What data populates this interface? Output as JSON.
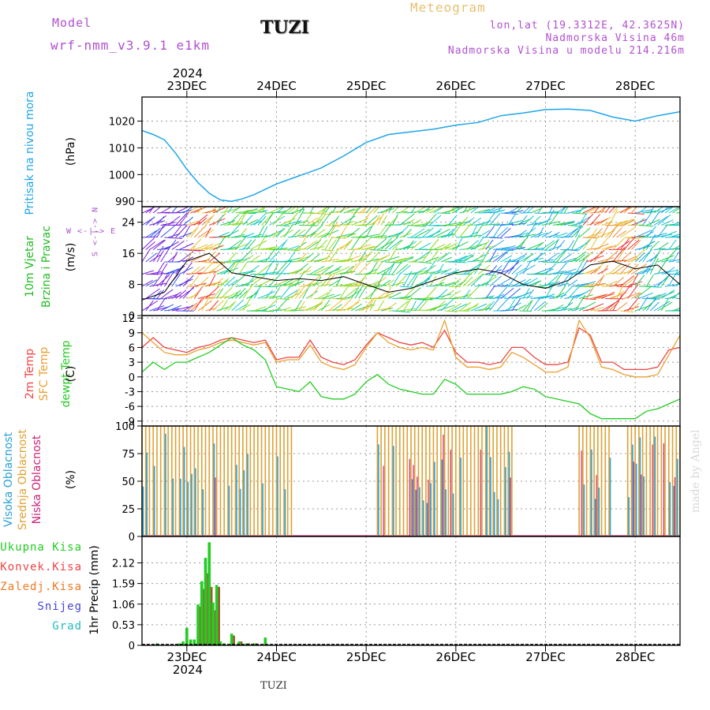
{
  "header": {
    "model_label": "Model",
    "model_name": "wrf-nmm_v3.9.1 e1km",
    "station": "TUZI",
    "product": "Meteogram",
    "lonlat": "lon,lat (19.3312E, 42.3625N)",
    "altitude": "Nadmorska Visina 46m",
    "model_altitude": "Nadmorska Visina u modelu 214.216m"
  },
  "footer": {
    "station": "TUZI",
    "credit": "made by Angel"
  },
  "colors": {
    "pressure": "#1ea6e8",
    "rain_total": "#22cc22",
    "rain_conv": "#ee4444",
    "freezing": "#ee7722",
    "snow": "#4444dd",
    "graupel": "#22bbbb",
    "t2m": "#ee4444",
    "tsfc": "#e8a030",
    "dewpt": "#22cc22",
    "cloud_high": "#2a9fd6",
    "cloud_mid": "#e0a030",
    "cloud_low": "#cc2277",
    "wind_label": "#22bb22",
    "wind_axis": "#aa55cc"
  },
  "axis": {
    "top_year": "2024",
    "bottom_year": "2024",
    "days": [
      "23DEC",
      "24DEC",
      "25DEC",
      "26DEC",
      "27DEC",
      "28DEC"
    ]
  },
  "labels": {
    "pressure": "Pritisak na nivou mora",
    "pressure_unit": "(hPa)",
    "wind1": "10m Vjetar",
    "wind2": "Brzina i Pravac",
    "wind_unit": "(m/s)",
    "wind_compass_ns": "S <-|-> N",
    "wind_compass_ew": "W <-|-> E",
    "t2m": "2m Temp",
    "tsfc": "SFC Temp",
    "dewpt": "dewpt Temp",
    "temp_unit": "(C)",
    "cloud_high": "Visoka Oblacnost",
    "cloud_mid": "Srednja Oblacnost",
    "cloud_low": "Niska Oblacnost",
    "cloud_unit": "(%)",
    "rain_total": "Ukupna Kisa",
    "rain_conv": "Konvek.Kisa",
    "rain_freezing": "Zaledj.Kisa",
    "rain_snow": "Snijeg",
    "rain_graupel": "Grad",
    "precip_unit": "1hr Precip (mm)"
  },
  "chart_data": [
    {
      "type": "line",
      "name": "pressure",
      "x_unit": "hours since 2024-12-22 12UTC",
      "ylim": [
        988,
        1029
      ],
      "yticks": [
        990,
        1000,
        1010,
        1020
      ],
      "x": [
        0,
        3,
        6,
        9,
        12,
        15,
        18,
        21,
        24,
        27,
        30,
        36,
        42,
        48,
        54,
        60,
        66,
        72,
        78,
        84,
        90,
        96,
        102,
        108,
        114,
        120,
        126,
        132,
        138,
        144
      ],
      "series": [
        {
          "values": [
            1016.5,
            1015,
            1013,
            1008,
            1002,
            997,
            993,
            990.5,
            990,
            991,
            992.5,
            996.5,
            999.5,
            1002.5,
            1007,
            1012,
            1015,
            1016,
            1017,
            1018.5,
            1019.5,
            1022,
            1023,
            1024.3,
            1024.5,
            1024,
            1021.5,
            1020,
            1022,
            1023.5
          ]
        }
      ]
    },
    {
      "type": "line",
      "name": "wind",
      "x_unit": "hours since 2024-12-22 12UTC",
      "ylim": [
        0,
        28
      ],
      "yticks": [
        0,
        8,
        16,
        24
      ],
      "x": [
        0,
        6,
        12,
        18,
        24,
        30,
        36,
        42,
        48,
        54,
        60,
        66,
        72,
        78,
        84,
        90,
        96,
        102,
        108,
        114,
        120,
        126,
        132,
        138,
        144
      ],
      "series": [
        {
          "name": "speed",
          "values": [
            4,
            6,
            14,
            16,
            11,
            10,
            9,
            9.5,
            9,
            10,
            8,
            6,
            7,
            9,
            11,
            12,
            11,
            8,
            7,
            9,
            13,
            14,
            12,
            13,
            8
          ]
        }
      ]
    },
    {
      "type": "line",
      "name": "temperature",
      "x_unit": "hours since 2024-12-22 12UTC",
      "ylim": [
        -10,
        12.5
      ],
      "yticks": [
        -9,
        -6,
        -3,
        0,
        3,
        6,
        9,
        12
      ],
      "x": [
        0,
        3,
        6,
        9,
        12,
        15,
        18,
        21,
        24,
        27,
        30,
        33,
        36,
        39,
        42,
        45,
        48,
        51,
        54,
        57,
        60,
        63,
        66,
        69,
        72,
        75,
        78,
        81,
        84,
        87,
        90,
        93,
        96,
        99,
        102,
        105,
        108,
        111,
        114,
        117,
        120,
        123,
        126,
        129,
        132,
        135,
        138,
        141,
        144
      ],
      "series": [
        {
          "name": "2m Temp",
          "values": [
            6,
            8,
            6,
            5.5,
            5,
            6,
            6.5,
            7.5,
            8,
            7.5,
            7,
            7.5,
            3.5,
            4,
            4,
            7.5,
            4,
            3,
            2.5,
            3.5,
            6.5,
            9,
            8,
            7,
            6.5,
            7,
            6,
            9.5,
            5,
            3,
            3,
            2.5,
            3,
            6,
            6,
            4,
            2.5,
            2.5,
            3,
            10,
            8.5,
            3,
            3,
            1.5,
            1.5,
            1.5,
            2,
            5.5,
            6
          ]
        },
        {
          "name": "SFC Temp",
          "values": [
            9,
            7,
            5,
            4.5,
            4.5,
            5.5,
            6,
            7,
            7.5,
            7,
            6.5,
            7,
            3,
            3.5,
            3.5,
            6.5,
            3,
            2,
            1.5,
            2.5,
            6,
            9,
            7,
            6,
            5.5,
            6,
            5.5,
            11.5,
            4,
            2,
            2,
            1.5,
            2,
            5,
            4,
            2.5,
            1,
            1,
            2,
            11.5,
            8,
            2,
            1.5,
            0.5,
            0,
            0,
            0.5,
            4.5,
            8.5
          ]
        },
        {
          "name": "dewpt Temp",
          "values": [
            1,
            3,
            1.5,
            3,
            3,
            4,
            5,
            6.5,
            8,
            6.5,
            5.5,
            3.5,
            -2,
            -2.5,
            -3,
            -1,
            -4,
            -4.5,
            -4.5,
            -3.5,
            -1,
            0.5,
            -1.5,
            -2.5,
            -3,
            -3.5,
            -3.5,
            -0.5,
            -1.5,
            -3.5,
            -3.5,
            -3.5,
            -3.5,
            -3,
            -2,
            -2.5,
            -4,
            -4.5,
            -5,
            -5.5,
            -7.5,
            -8.5,
            -8.5,
            -8.5,
            -8.5,
            -7,
            -6.5,
            -5.5,
            -4.5
          ]
        }
      ]
    },
    {
      "type": "bar",
      "name": "cloud",
      "x_unit": "hours since 2024-12-22 12UTC",
      "ylim": [
        0,
        100
      ],
      "yticks": [
        0,
        25,
        50,
        75,
        100
      ],
      "periods": [
        [
          0,
          40
        ],
        [
          63,
          99
        ],
        [
          117,
          125
        ],
        [
          130,
          144
        ]
      ]
    },
    {
      "type": "bar",
      "name": "precip",
      "x_unit": "hours since 2024-12-22 12UTC",
      "ylim": [
        0,
        2.8
      ],
      "yticks": [
        0,
        0.53,
        1.06,
        1.59,
        2.12
      ],
      "x": [
        4,
        10,
        11,
        12,
        13,
        14,
        15,
        16,
        17,
        18,
        19,
        20,
        21,
        22,
        24,
        26,
        28,
        30,
        33
      ],
      "series": [
        {
          "name": "Ukupna Kisa",
          "values": [
            0.05,
            0.05,
            0.1,
            0.45,
            0.15,
            0.15,
            1.05,
            1.65,
            2.25,
            2.65,
            1.1,
            1.55,
            0.1,
            0.05,
            0.3,
            0.1,
            0.05,
            0.05,
            0.2
          ]
        },
        {
          "name": "Konvek.Kisa",
          "values": [
            0,
            0,
            0,
            0,
            0,
            0,
            1.0,
            1.45,
            1.85,
            1.5,
            0.9,
            1.5,
            0,
            0,
            0.25,
            0.1,
            0.05,
            0.05,
            0
          ]
        }
      ]
    }
  ]
}
